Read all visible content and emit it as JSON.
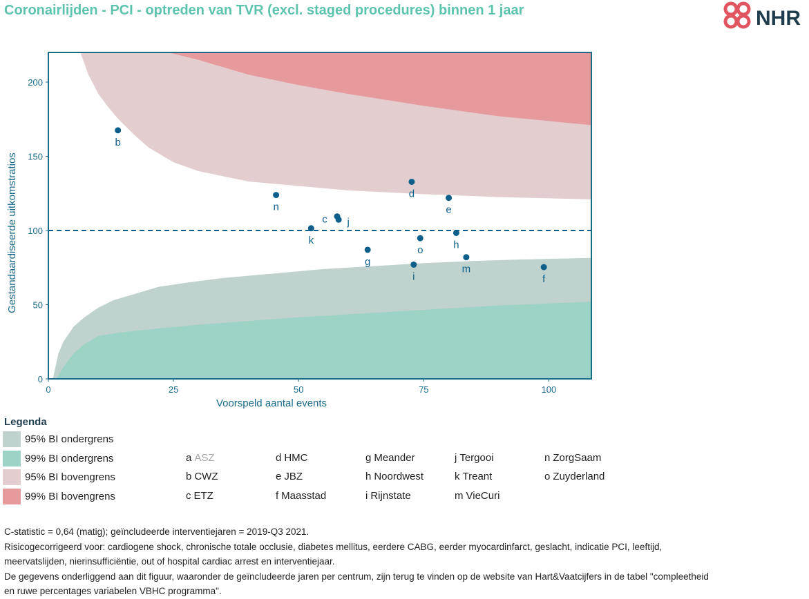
{
  "title": "Coronairlijden - PCI - optreden van TVR (excl. staged procedures) binnen 1 jaar",
  "logo": {
    "text": "NHR",
    "icon": "nhr-cross-logo-icon",
    "color": "#e05560",
    "text_color": "#1f3d4d"
  },
  "chart_data": {
    "type": "scatter",
    "subtype": "funnel-plot",
    "xlabel": "Voorspeld aantal events",
    "ylabel": "Gestandaardiseerde uitkomstratios",
    "xlim": [
      0,
      108.5
    ],
    "ylim": [
      0,
      220
    ],
    "x_ticks": [
      0,
      25,
      50,
      75,
      100
    ],
    "y_ticks": [
      0,
      50,
      100,
      150,
      200
    ],
    "reference_line": 100,
    "grid": false,
    "points": [
      {
        "label": "b",
        "x": 13.9,
        "y": 167.5
      },
      {
        "label": "n",
        "x": 45.5,
        "y": 123.9
      },
      {
        "label": "k",
        "x": 52.5,
        "y": 101.5
      },
      {
        "label": "c",
        "x": 57.7,
        "y": 109.5
      },
      {
        "label": "j",
        "x": 58.0,
        "y": 107.3
      },
      {
        "label": "g",
        "x": 63.8,
        "y": 87.0
      },
      {
        "label": "d",
        "x": 72.6,
        "y": 132.8
      },
      {
        "label": "i",
        "x": 73.0,
        "y": 77.0
      },
      {
        "label": "o",
        "x": 74.3,
        "y": 94.8
      },
      {
        "label": "e",
        "x": 80.0,
        "y": 122.0
      },
      {
        "label": "h",
        "x": 81.5,
        "y": 98.4
      },
      {
        "label": "m",
        "x": 83.5,
        "y": 82.0
      },
      {
        "label": "f",
        "x": 99.0,
        "y": 75.3
      }
    ],
    "bands": [
      {
        "name": "95% BI ondergrens",
        "color": "#bfd2cd",
        "x": [
          0.9,
          2,
          3,
          5,
          7,
          10,
          13,
          17,
          22,
          28,
          35,
          45,
          55,
          65,
          75,
          85,
          95,
          108.5
        ],
        "y": [
          0,
          17,
          25,
          35,
          41,
          48,
          53,
          57,
          62,
          65,
          68,
          71,
          74,
          76,
          78,
          79.5,
          80.5,
          81.5
        ]
      },
      {
        "name": "99% BI ondergrens",
        "color": "#9dd3c6",
        "x": [
          1.6,
          3,
          5,
          7,
          10,
          15,
          22,
          30,
          40,
          50,
          60,
          75,
          90,
          108.5
        ],
        "y": [
          0,
          8,
          17,
          23,
          29,
          31.5,
          34,
          36.5,
          39,
          41.5,
          43.5,
          46.5,
          49.5,
          52
        ]
      },
      {
        "name": "95% BI bovengrens",
        "color": "#e4cdcf",
        "x": [
          6.4,
          8,
          10,
          12,
          14,
          17,
          20,
          25,
          30,
          40,
          50,
          60,
          75,
          90,
          108.5
        ],
        "y": [
          220,
          205,
          192,
          183,
          175,
          165,
          156,
          146,
          140,
          133,
          130,
          127,
          124.5,
          122.5,
          121
        ]
      },
      {
        "name": "99% BI bovengrens",
        "color": "#e69a9b",
        "x": [
          24,
          30,
          40,
          50,
          60,
          75,
          90,
          108.5
        ],
        "y": [
          220,
          215,
          205,
          198,
          192,
          184,
          177,
          171
        ]
      }
    ]
  },
  "legend": {
    "title": "Legenda",
    "bands": [
      {
        "label": "95% BI ondergrens",
        "color": "#bfd2cd"
      },
      {
        "label": "99% BI ondergrens",
        "color": "#9dd3c6"
      },
      {
        "label": "95% BI bovengrens",
        "color": "#e4cdcf"
      },
      {
        "label": "99% BI bovengrens",
        "color": "#e69a9b"
      }
    ],
    "centers": [
      {
        "letter": "a",
        "name": "ASZ",
        "greyed": true
      },
      {
        "letter": "b",
        "name": "CWZ"
      },
      {
        "letter": "c",
        "name": "ETZ"
      },
      {
        "letter": "d",
        "name": "HMC"
      },
      {
        "letter": "e",
        "name": "JBZ"
      },
      {
        "letter": "f",
        "name": "Maasstad"
      },
      {
        "letter": "g",
        "name": "Meander"
      },
      {
        "letter": "h",
        "name": "Noordwest"
      },
      {
        "letter": "i",
        "name": "Rijnstate"
      },
      {
        "letter": "j",
        "name": "Tergooi"
      },
      {
        "letter": "k",
        "name": "Treant"
      },
      {
        "letter": "m",
        "name": "VieCuri"
      },
      {
        "letter": "n",
        "name": "ZorgSaam"
      },
      {
        "letter": "o",
        "name": "Zuyderland"
      }
    ]
  },
  "footnotes": [
    "C-statistic =  0,64 (matig); geïncludeerde interventiejaren = 2019-Q3 2021.",
    "Risicogecorrigeerd voor: cardiogene shock, chronische totale occlusie, diabetes mellitus, eerdere CABG, eerder myocardinfarct, geslacht, indicatie PCI, leeftijd,",
    "meervatslijden, nierinsufficiëntie, out of hospital cardiac arrest en interventiejaar.",
    "De gegevens onderliggend aan dit figuur, waaronder de geïncludeerde jaren per centrum, zijn terug te vinden op de website van Hart&Vaatcijfers in de tabel \"compleetheid",
    "en ruwe percentages variabelen VBHC programma\"."
  ],
  "colors": {
    "axis": "#1a6b8a",
    "point": "#0d5f8c",
    "title": "#5cc4ad"
  }
}
